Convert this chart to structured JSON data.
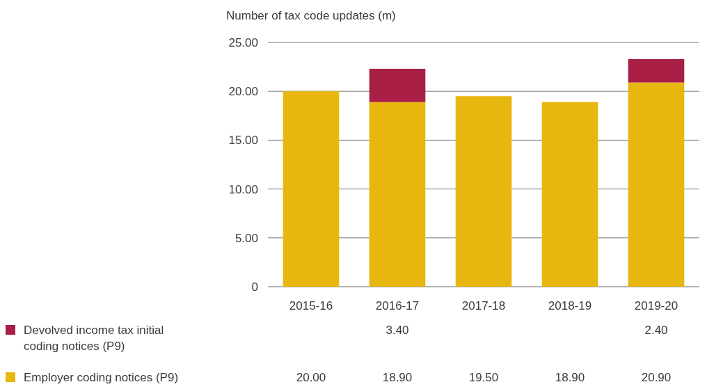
{
  "chart_data": {
    "type": "bar",
    "ylabel": "Number of tax code updates (m)",
    "categories": [
      "2015-16",
      "2016-17",
      "2017-18",
      "2018-19",
      "2019-20"
    ],
    "stacked": true,
    "series": [
      {
        "name": "Employer coding notices (P9)",
        "color": "#e8b70f",
        "values": [
          20.0,
          18.9,
          19.5,
          18.9,
          20.9
        ],
        "value_labels": [
          "20.00",
          "18.90",
          "19.50",
          "18.90",
          "20.90"
        ]
      },
      {
        "name": "Devolved income tax initial coding notices (P9)",
        "color": "#a81e45",
        "values": [
          null,
          3.4,
          null,
          null,
          2.4
        ],
        "value_labels": [
          null,
          "3.40",
          null,
          null,
          "2.40"
        ]
      }
    ],
    "ylim": [
      0,
      25
    ],
    "yticks": [
      0,
      {
        "value": 5,
        "label": "5.00"
      },
      {
        "value": 10,
        "label": "10.00"
      },
      {
        "value": 15,
        "label": "15.00"
      },
      {
        "value": 20,
        "label": "20.00"
      },
      {
        "value": 25,
        "label": "25.00"
      }
    ],
    "grid": "y",
    "legend": "bottom left"
  }
}
